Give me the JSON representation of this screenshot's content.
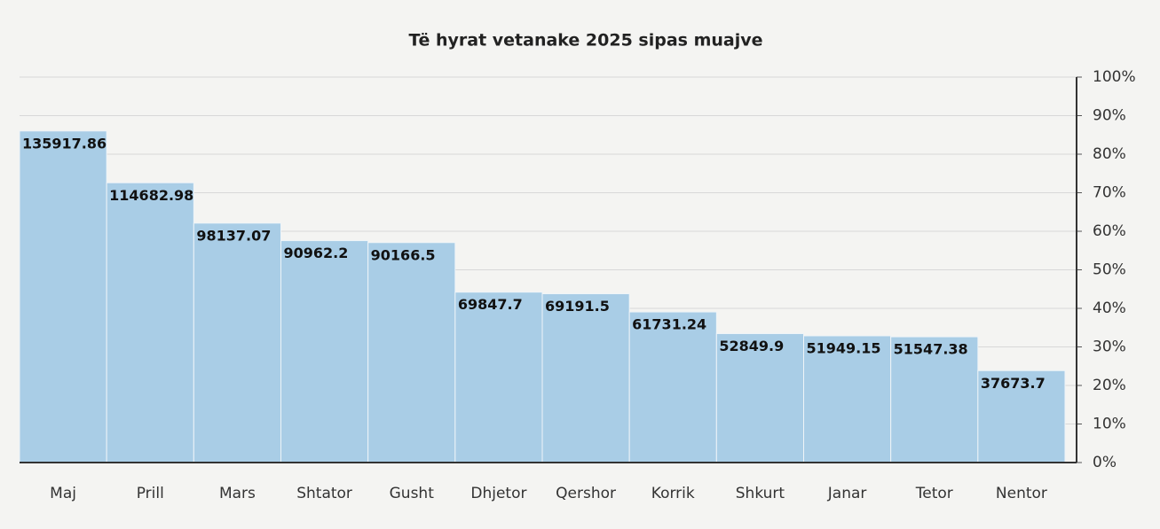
{
  "chart_data": {
    "type": "bar",
    "title": "Të hyrat vetanake 2025 sipas muajve",
    "categories": [
      "Maj",
      "Prill",
      "Mars",
      "Shtator",
      "Gusht",
      "Dhjetor",
      "Qershor",
      "Korrik",
      "Shkurt",
      "Janar",
      "Tetor",
      "Nentor"
    ],
    "values": [
      135917.86,
      114682.98,
      98137.07,
      90962.2,
      90166.5,
      69847.7,
      69191.5,
      61731.24,
      52849.9,
      51949.15,
      51547.38,
      37673.7
    ],
    "color": "#a9cde6",
    "ylim": [
      0,
      158000
    ],
    "y2lim": [
      0,
      100
    ],
    "y2ticks": [
      {
        "value": 0,
        "label": "0%"
      },
      {
        "value": 10,
        "label": "10%"
      },
      {
        "value": 20,
        "label": "20%"
      },
      {
        "value": 30,
        "label": "30%"
      },
      {
        "value": 40,
        "label": "40%"
      },
      {
        "value": 50,
        "label": "50%"
      },
      {
        "value": 60,
        "label": "60%"
      },
      {
        "value": 70,
        "label": "70%"
      },
      {
        "value": 80,
        "label": "80%"
      },
      {
        "value": 90,
        "label": "90%"
      },
      {
        "value": 100,
        "label": "100%"
      }
    ],
    "grid": true
  }
}
